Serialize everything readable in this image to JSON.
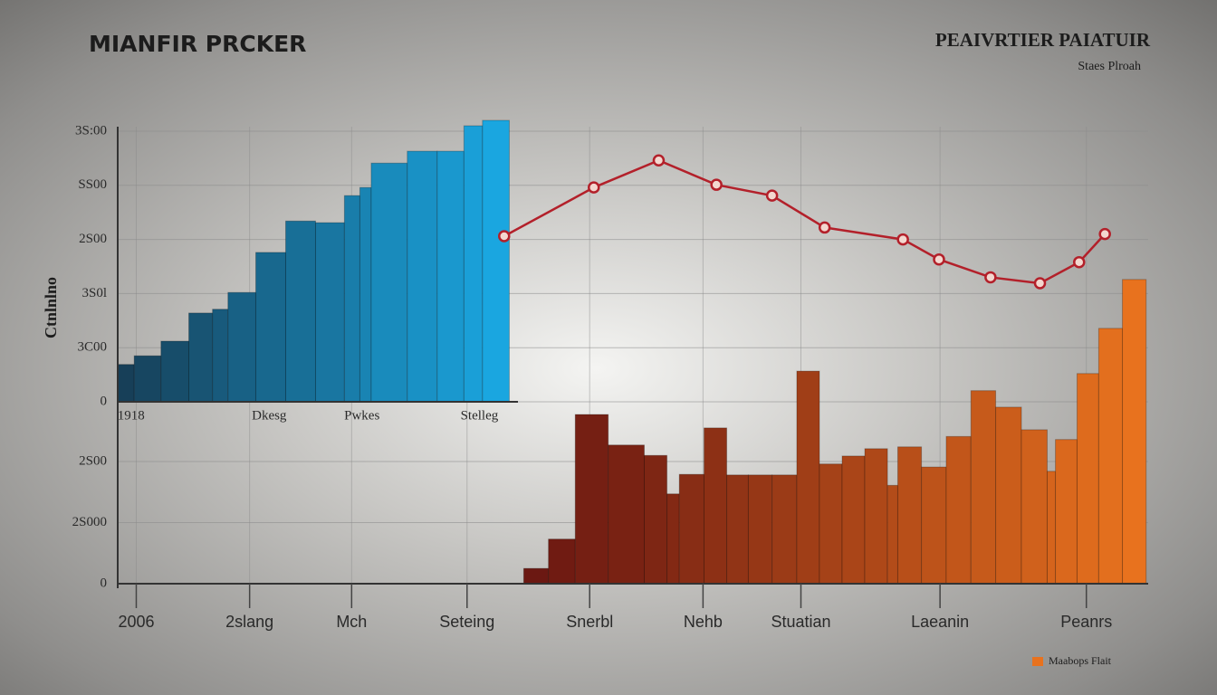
{
  "chart_data": [
    {
      "type": "histogram",
      "title": "MIANFIR PRCKER",
      "ylabel": "Ctnlnlno",
      "bins": [
        0,
        1.6,
        4.2,
        6.9,
        9.2,
        10.7,
        13.4,
        16.3,
        19.2,
        22.0,
        23.5,
        24.6,
        28.1,
        31.0,
        33.6,
        35.4,
        38.0
      ],
      "values": [
        0.69,
        0.85,
        1.12,
        1.64,
        1.71,
        2.02,
        2.76,
        3.34,
        3.31,
        3.81,
        3.96,
        4.41,
        4.63,
        4.63,
        5.1,
        5.2
      ],
      "colors": [
        "#173f58",
        "#1aa6e0"
      ],
      "xlim": [
        0,
        100
      ],
      "ylim": [
        0,
        5.2
      ],
      "xticks": [
        {
          "value": 1.3,
          "label": "1918"
        },
        {
          "value": 14.7,
          "label": "Dkesg"
        },
        {
          "value": 23.7,
          "label": "Pwkes"
        },
        {
          "value": 35.1,
          "label": "Stelleg"
        }
      ],
      "yticks": [
        0,
        {
          "value": 1,
          "label": "3C00"
        },
        {
          "value": 2,
          "label": "3S0l"
        },
        {
          "value": 3,
          "label": "2S00"
        },
        {
          "value": 4,
          "label": "SS00"
        },
        {
          "value": 5,
          "label": "3S:00"
        }
      ],
      "grid": true
    },
    {
      "type": "line",
      "title": "PEAIVRTIER PAIATUIR",
      "subtitle": "Staes Plroah",
      "x": [
        37.5,
        46.2,
        52.5,
        58.1,
        63.5,
        68.6,
        76.2,
        79.7,
        84.7,
        89.5,
        93.3,
        95.8
      ],
      "values": [
        3.06,
        3.96,
        4.46,
        4.01,
        3.81,
        3.22,
        3.0,
        2.63,
        2.3,
        2.19,
        2.58,
        3.1
      ],
      "color": "#b3202a",
      "xlim": [
        0,
        100
      ],
      "ylim": [
        0,
        5.2
      ]
    },
    {
      "type": "histogram",
      "bins": [
        39.4,
        41.8,
        44.4,
        47.6,
        51.1,
        53.3,
        54.5,
        56.9,
        59.1,
        61.2,
        63.5,
        65.9,
        68.1,
        70.3,
        72.5,
        74.7,
        75.7,
        78.0,
        80.4,
        82.8,
        85.2,
        87.7,
        90.2,
        91.0,
        93.1,
        95.2,
        97.5,
        99.8
      ],
      "series": [
        {
          "name": "Maabops Flait",
          "colors": [
            "#6b1812",
            "#e8721e"
          ],
          "values": [
            0.25,
            0.73,
            2.77,
            2.27,
            2.1,
            1.47,
            1.79,
            2.55,
            1.78,
            1.78,
            1.78,
            3.48,
            1.96,
            2.09,
            2.21,
            1.61,
            2.24,
            1.91,
            2.41,
            3.16,
            2.89,
            2.52,
            1.84,
            2.36,
            3.44,
            4.18,
            4.98
          ]
        }
      ],
      "xlim": [
        0,
        100
      ],
      "ylim": [
        0,
        5
      ],
      "xticks": [
        {
          "value": 1.8,
          "label": "2006"
        },
        {
          "value": 12.8,
          "label": "2slang"
        },
        {
          "value": 22.7,
          "label": "Mch"
        },
        {
          "value": 33.9,
          "label": "Seteing"
        },
        {
          "value": 45.8,
          "label": "Snerbl"
        },
        {
          "value": 56.8,
          "label": "Nehb"
        },
        {
          "value": 66.3,
          "label": "Stuatian"
        },
        {
          "value": 79.8,
          "label": "Laeanin"
        },
        {
          "value": 94.0,
          "label": "Peanrs"
        }
      ],
      "yticks": [
        0,
        {
          "value": 1,
          "label": "2S000"
        },
        {
          "value": 2,
          "label": "2S00"
        }
      ],
      "grid": true
    }
  ]
}
